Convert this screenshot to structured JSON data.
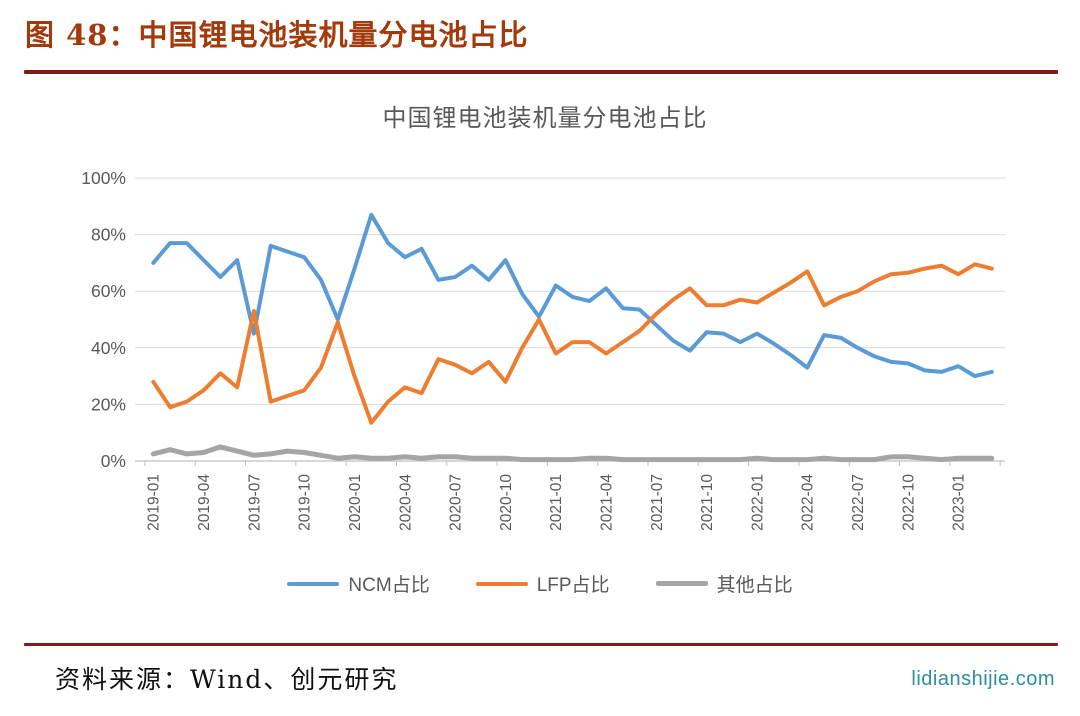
{
  "header": {
    "title": "图 48：中国锂电池装机量分电池占比"
  },
  "chart_data": {
    "type": "line",
    "title": "中国锂电池装机量分电池占比",
    "xlabel": "",
    "ylabel": "",
    "ylim": [
      0,
      100
    ],
    "grid": true,
    "legend_position": "bottom",
    "y_ticks": [
      "0%",
      "20%",
      "40%",
      "60%",
      "80%",
      "100%"
    ],
    "x": [
      "2019-01",
      "2019-02",
      "2019-03",
      "2019-04",
      "2019-05",
      "2019-06",
      "2019-07",
      "2019-08",
      "2019-09",
      "2019-10",
      "2019-11",
      "2019-12",
      "2020-01",
      "2020-02",
      "2020-03",
      "2020-04",
      "2020-05",
      "2020-06",
      "2020-07",
      "2020-08",
      "2020-09",
      "2020-10",
      "2020-11",
      "2020-12",
      "2021-01",
      "2021-02",
      "2021-03",
      "2021-04",
      "2021-05",
      "2021-06",
      "2021-07",
      "2021-08",
      "2021-09",
      "2021-10",
      "2021-11",
      "2021-12",
      "2022-01",
      "2022-02",
      "2022-03",
      "2022-04",
      "2022-05",
      "2022-06",
      "2022-07",
      "2022-08",
      "2022-09",
      "2022-10",
      "2022-11",
      "2022-12",
      "2023-01",
      "2023-02",
      "2023-03"
    ],
    "x_tick_labels": [
      "2019-01",
      "2019-04",
      "2019-07",
      "2019-10",
      "2020-01",
      "2020-04",
      "2020-07",
      "2020-10",
      "2021-01",
      "2021-04",
      "2021-07",
      "2021-10",
      "2022-01",
      "2022-04",
      "2022-07",
      "2022-10",
      "2023-01"
    ],
    "series": [
      {
        "name": "NCM占比",
        "color": "#5B9BD5",
        "line_width": 4,
        "values": [
          70,
          77,
          77,
          71,
          65,
          71,
          45,
          76,
          74,
          72,
          64,
          50,
          68,
          87,
          77,
          72,
          75,
          64,
          65,
          69,
          64,
          71,
          59,
          51,
          62,
          58,
          56.5,
          61,
          54,
          53.5,
          48,
          42.5,
          39,
          45.5,
          45,
          42,
          45,
          41.5,
          37.5,
          33,
          44.5,
          43.5,
          40,
          37,
          35,
          34.5,
          32,
          31.5,
          33.5,
          30,
          31.5
        ]
      },
      {
        "name": "LFP占比",
        "color": "#ED7D31",
        "line_width": 4,
        "values": [
          28,
          19,
          21,
          25,
          31,
          26,
          53,
          21,
          23,
          25,
          33,
          49,
          30,
          13.5,
          21,
          26,
          24,
          36,
          34,
          31,
          35,
          28,
          40,
          50,
          38,
          42,
          42,
          38,
          42,
          46,
          52,
          57,
          61,
          55,
          55,
          57,
          56,
          59.5,
          63,
          67,
          55,
          58,
          60,
          63.5,
          66,
          66.5,
          68,
          69,
          66,
          69.5,
          68
        ]
      },
      {
        "name": "其他占比",
        "color": "#A5A5A5",
        "line_width": 5,
        "values": [
          2.5,
          4,
          2.5,
          3,
          5,
          3.5,
          2,
          2.5,
          3.5,
          3,
          2,
          1,
          1.5,
          1,
          1,
          1.5,
          1,
          1.5,
          1.5,
          1,
          1,
          1,
          0.5,
          0.5,
          0.5,
          0.5,
          1,
          1,
          0.5,
          0.5,
          0.5,
          0.5,
          0.5,
          0.5,
          0.5,
          0.5,
          1,
          0.5,
          0.5,
          0.5,
          1,
          0.5,
          0.5,
          0.5,
          1.5,
          1.5,
          1,
          0.5,
          1,
          1,
          1
        ]
      }
    ]
  },
  "footer": {
    "source": "资料来源：Wind、创元研究",
    "watermark": "lidianshijie.com"
  },
  "colors": {
    "heading": "#A23A0B",
    "rule": "#7E1C15",
    "chart_text": "#595959",
    "gridline": "#D9D9D9",
    "axis": "#BFBFBF",
    "watermark": "#2E8CA3"
  }
}
